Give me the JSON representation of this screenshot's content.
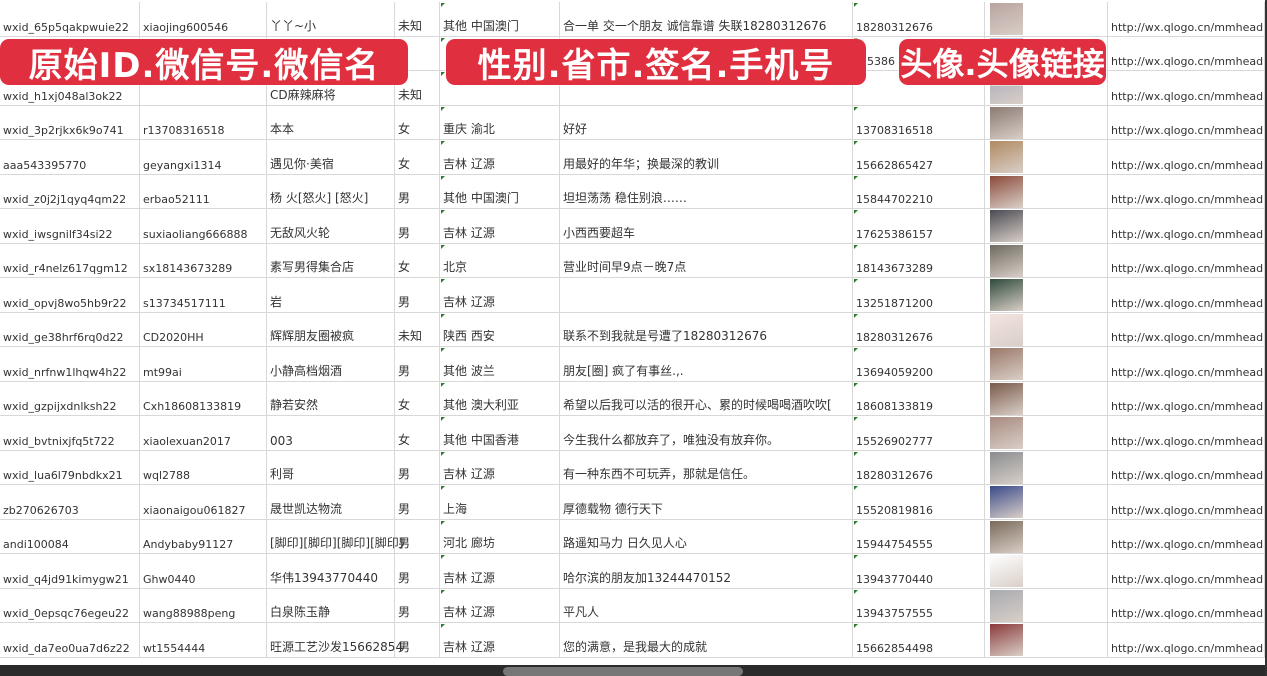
{
  "overlay_labels": [
    "原始ID.微信号.微信名",
    "性别.省市.签名.手机号",
    "头像.头像链接"
  ],
  "colors": {
    "label_bg": "#e0303f",
    "grid": "#d8d8d8"
  },
  "rows": [
    {
      "id": "wxid_65p5qakpwuie22",
      "wechat": "xiaojing600546",
      "name": "丫丫~小",
      "gender": "未知",
      "region": "其他 中国澳门",
      "signature": "合一单 交一个朋友 诚信靠谱 失联18280312676",
      "phone": "18280312676",
      "avatar_color": "#b9a3a0",
      "url": "http://wx.qlogo.cn/mmhead"
    },
    {
      "id": "",
      "wechat": "",
      "name": "",
      "gender": "",
      "region": "",
      "signature": "",
      "phone": "5386",
      "avatar_color": "#6f7fa8",
      "url": "http://wx.qlogo.cn/mmhead"
    },
    {
      "id": "wxid_h1xj048al3ok22",
      "wechat": "",
      "name": "CD麻辣麻将",
      "gender": "未知",
      "region": "",
      "signature": "",
      "phone": "",
      "avatar_color": "#a9a9b9",
      "url": "http://wx.qlogo.cn/mmhead"
    },
    {
      "id": "wxid_3p2rjkx6k9o741",
      "wechat": "r13708316518",
      "name": "本本",
      "gender": "女",
      "region": "重庆 渝北",
      "signature": "好好",
      "phone": "13708316518",
      "avatar_color": "#8a7a72",
      "url": "http://wx.qlogo.cn/mmhead"
    },
    {
      "id": "aaa543395770",
      "wechat": "geyangxi1314",
      "name": "遇见你·美宿",
      "gender": "女",
      "region": "吉林 辽源",
      "signature": "用最好的年华；换最深的教训",
      "phone": "15662865427",
      "avatar_color": "#b08a62",
      "url": "http://wx.qlogo.cn/mmhead"
    },
    {
      "id": "wxid_z0j2j1qyq4qm22",
      "wechat": "erbao52111",
      "name": "杨 火[怒火] [怒火]",
      "gender": "男",
      "region": "其他 中国澳门",
      "signature": "坦坦荡荡 稳住别浪……",
      "phone": "15844702210",
      "avatar_color": "#8b4a3a",
      "url": "http://wx.qlogo.cn/mmhead"
    },
    {
      "id": "wxid_iwsgnilf34si22",
      "wechat": "suxiaoliang666888",
      "name": "无敌风火轮",
      "gender": "男",
      "region": "吉林 辽源",
      "signature": "小西西要超车",
      "phone": "17625386157",
      "avatar_color": "#4a4a52",
      "url": "http://wx.qlogo.cn/mmhead"
    },
    {
      "id": "wxid_r4nelz617qgm12",
      "wechat": "sx18143673289",
      "name": "素写男得集合店",
      "gender": "女",
      "region": "北京",
      "signature": "营业时间早9点－晚7点",
      "phone": "18143673289",
      "avatar_color": "#6e6a60",
      "url": "http://wx.qlogo.cn/mmhead"
    },
    {
      "id": "wxid_opvj8wo5hb9r22",
      "wechat": "s13734517111",
      "name": "岩",
      "gender": "男",
      "region": "吉林 辽源",
      "signature": "",
      "phone": "13251871200",
      "avatar_color": "#2f4a3a",
      "url": "http://wx.qlogo.cn/mmhead"
    },
    {
      "id": "wxid_ge38hrf6rq0d22",
      "wechat": "CD2020HH",
      "name": "辉辉朋友圈被疯",
      "gender": "未知",
      "region": "陕西 西安",
      "signature": "联系不到我就是号遭了18280312676",
      "phone": "18280312676",
      "avatar_color": "#f3e4e0",
      "url": "http://wx.qlogo.cn/mmhead"
    },
    {
      "id": "wxid_nrfnw1lhqw4h22",
      "wechat": "mt99ai",
      "name": "小静高档烟酒",
      "gender": "男",
      "region": "其他 波兰",
      "signature": "朋友[圈] 疯了有事丝.,.",
      "phone": "13694059200",
      "avatar_color": "#9a7868",
      "url": "http://wx.qlogo.cn/mmhead"
    },
    {
      "id": "wxid_gzpijxdnlksh22",
      "wechat": "Cxh18608133819",
      "name": "静若安然",
      "gender": "女",
      "region": "其他 澳大利亚",
      "signature": "希望以后我可以活的很开心、累的时候喝喝酒吹吹[",
      "phone": "18608133819",
      "avatar_color": "#7a5a4a",
      "url": "http://wx.qlogo.cn/mmhead"
    },
    {
      "id": "wxid_bvtnixjfq5t722",
      "wechat": "xiaolexuan2017",
      "name": "003",
      "gender": "女",
      "region": "其他 中国香港",
      "signature": "今生我什么都放弃了，唯独没有放弃你。",
      "phone": "15526902777",
      "avatar_color": "#a88a80",
      "url": "http://wx.qlogo.cn/mmhead"
    },
    {
      "id": "wxid_lua6l79nbdkx21",
      "wechat": "wql2788",
      "name": "利哥",
      "gender": "男",
      "region": "吉林 辽源",
      "signature": "有一种东西不可玩弄，那就是信任。",
      "phone": "18280312676",
      "avatar_color": "#8a8c90",
      "url": "http://wx.qlogo.cn/mmhead"
    },
    {
      "id": "zb270626703",
      "wechat": "xiaonaigou061827",
      "name": "晟世凯达物流",
      "gender": "男",
      "region": "上海",
      "signature": "厚德载物 德行天下",
      "phone": "15520819816",
      "avatar_color": "#3a4a8a",
      "url": "http://wx.qlogo.cn/mmhead"
    },
    {
      "id": "andi100084",
      "wechat": "Andybaby91127",
      "name": "[脚印][脚印][脚印][脚印]",
      "gender": "男",
      "region": "河北 廊坊",
      "signature": "路遥知马力 日久见人心",
      "phone": "15944754555",
      "avatar_color": "#7a6a5a",
      "url": "http://wx.qlogo.cn/mmhead"
    },
    {
      "id": "wxid_q4jd91kimygw21",
      "wechat": "Ghw0440",
      "name": "华伟13943770440",
      "gender": "男",
      "region": "吉林 辽源",
      "signature": "哈尔滨的朋友加13244470152",
      "phone": "13943770440",
      "avatar_color": "#ffffff",
      "url": "http://wx.qlogo.cn/mmhead"
    },
    {
      "id": "wxid_0epsqc76egeu22",
      "wechat": "wang88988peng",
      "name": "白泉陈玉静",
      "gender": "男",
      "region": "吉林 辽源",
      "signature": "平凡人",
      "phone": "13943757555",
      "avatar_color": "#a8aab0",
      "url": "http://wx.qlogo.cn/mmhead"
    },
    {
      "id": "wxid_da7eo0ua7d6z22",
      "wechat": "wt1554444",
      "name": "旺源工艺沙发15662854",
      "gender": "男",
      "region": "吉林 辽源",
      "signature": "您的满意，是我最大的成就",
      "phone": "15662854498",
      "avatar_color": "#8a3a3a",
      "url": "http://wx.qlogo.cn/mmhead"
    }
  ]
}
